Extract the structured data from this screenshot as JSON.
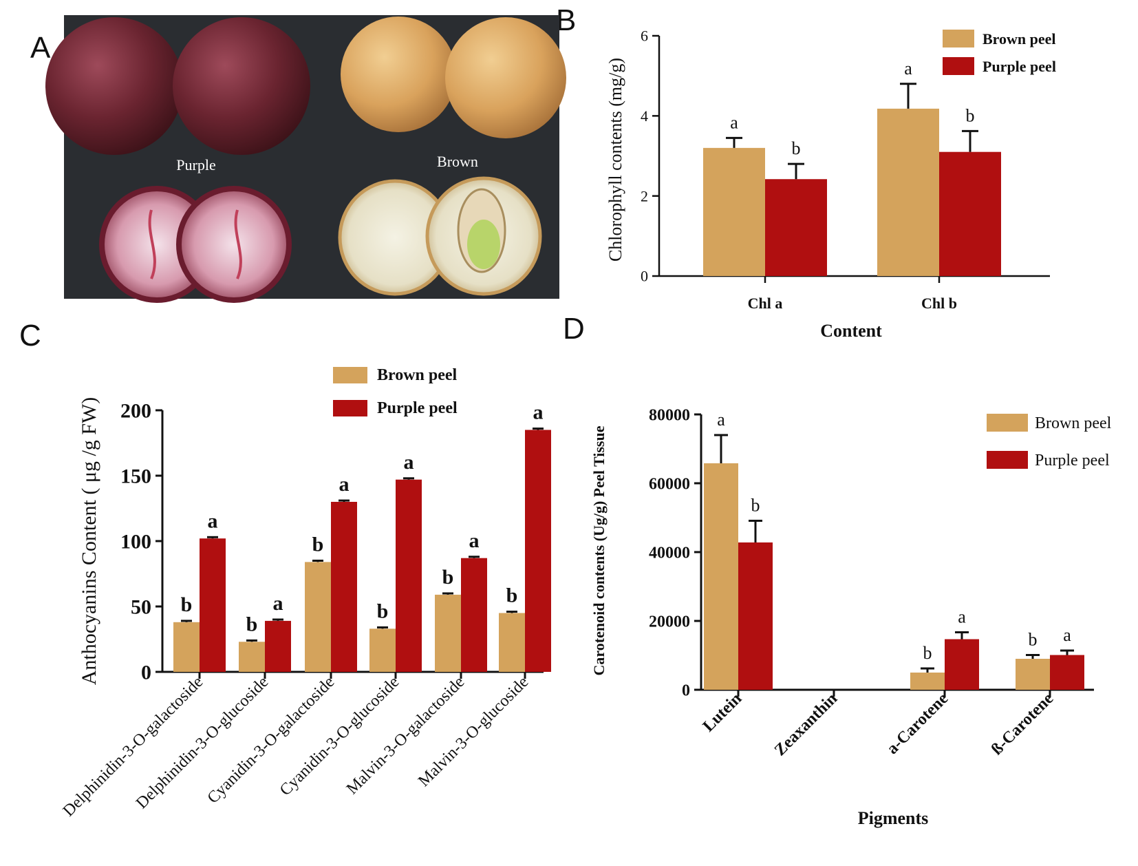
{
  "panels": {
    "a": {
      "letter": "A"
    },
    "b": {
      "letter": "B"
    },
    "c": {
      "letter": "C"
    },
    "d": {
      "letter": "D"
    }
  },
  "photo": {
    "label_purple": "Purple",
    "label_brown": "Brown"
  },
  "colors": {
    "brown_peel": "#D4A35C",
    "purple_peel": "#B00F10",
    "photo_bg": "#2A2D31"
  },
  "chart_data": [
    {
      "panel": "B",
      "type": "bar",
      "title": "",
      "xlabel": "Content",
      "ylabel": "Chlorophyll contents (mg/g)",
      "categories": [
        "Chl a",
        "Chl b"
      ],
      "ylim": [
        0,
        6
      ],
      "yticks": [
        "0",
        "2",
        "4",
        "6"
      ],
      "legend_position": "top-right",
      "series": [
        {
          "name": "Brown peel",
          "values": [
            3.2,
            4.18
          ],
          "errors": [
            0.25,
            0.62
          ],
          "letters": [
            "a",
            "a"
          ]
        },
        {
          "name": "Purple peel",
          "values": [
            2.42,
            3.1
          ],
          "errors": [
            0.38,
            0.52
          ],
          "letters": [
            "b",
            "b"
          ]
        }
      ]
    },
    {
      "panel": "C",
      "type": "bar",
      "title": "",
      "xlabel": "",
      "ylabel": "Anthocyanins Content ( μg /g FW)",
      "categories": [
        "Delphinidin-3-O-galactoside",
        "Delphinidin-3-O-glucoside",
        "Cyanidin-3-O-galactoside",
        "Cyanidin-3-O-glucoside",
        "Malvin-3-O-galactoside",
        "Malvin-3-O-glucoside"
      ],
      "ylim": [
        0,
        200
      ],
      "yticks": [
        "0",
        "50",
        "100",
        "150",
        "200"
      ],
      "legend_position": "top-right",
      "series": [
        {
          "name": "Brown peel",
          "values": [
            38,
            23,
            84,
            33,
            59,
            45
          ],
          "errors": [
            1,
            1,
            1,
            1,
            1,
            1
          ],
          "letters": [
            "b",
            "b",
            "b",
            "b",
            "b",
            "b"
          ]
        },
        {
          "name": "Purple peel",
          "values": [
            102,
            39,
            130,
            147,
            87,
            185
          ],
          "errors": [
            1,
            1,
            1,
            1,
            1,
            1
          ],
          "letters": [
            "a",
            "a",
            "a",
            "a",
            "a",
            "a"
          ]
        }
      ]
    },
    {
      "panel": "D",
      "type": "bar",
      "title": "",
      "xlabel": "Pigments",
      "ylabel": "Carotenoid contents (Ug/g) Peel Tissue",
      "categories": [
        "Lutein",
        "Zeaxanthin",
        "a-Carotene",
        "ß-Carotene"
      ],
      "ylim": [
        0,
        80000
      ],
      "yticks": [
        "0",
        "20000",
        "40000",
        "60000",
        "80000"
      ],
      "legend_position": "top-right",
      "series": [
        {
          "name": "Brown peel",
          "values": [
            65800,
            0,
            5000,
            9000
          ],
          "errors": [
            8200,
            0,
            1200,
            1100
          ],
          "letters": [
            "a",
            "",
            "b",
            "b"
          ]
        },
        {
          "name": "Purple peel",
          "values": [
            42800,
            0,
            14700,
            10100
          ],
          "errors": [
            6300,
            0,
            2000,
            1300
          ],
          "letters": [
            "b",
            "",
            "a",
            "a"
          ]
        }
      ]
    }
  ]
}
